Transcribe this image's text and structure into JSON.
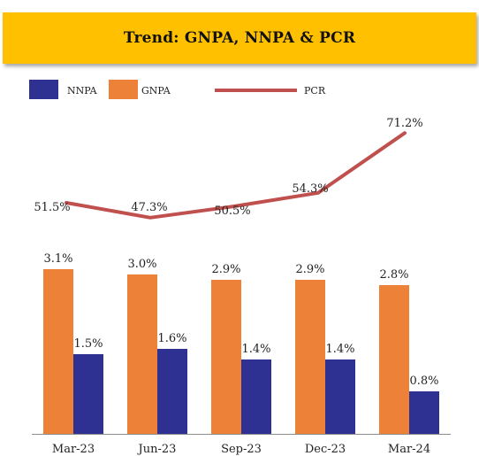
{
  "chart_data": {
    "type": "bar",
    "title": "Trend: GNPA, NNPA & PCR",
    "categories": [
      "Mar-23",
      "Jun-23",
      "Sep-23",
      "Dec-23",
      "Mar-24"
    ],
    "series": [
      {
        "name": "GNPA",
        "kind": "bar",
        "color": "#ed8137",
        "values": [
          3.1,
          3.0,
          2.9,
          2.9,
          2.8
        ],
        "labels": [
          "3.1%",
          "3.0%",
          "2.9%",
          "2.9%",
          "2.8%"
        ]
      },
      {
        "name": "NNPA",
        "kind": "bar",
        "color": "#2e3192",
        "values": [
          1.5,
          1.6,
          1.4,
          1.4,
          0.8
        ],
        "labels": [
          "1.5%",
          "1.6%",
          "1.4%",
          "1.4%",
          "0.8%"
        ]
      },
      {
        "name": "PCR",
        "kind": "line",
        "color": "#c0504d",
        "values": [
          51.5,
          47.3,
          50.5,
          54.3,
          71.2
        ],
        "labels": [
          "51.5%",
          "47.3%",
          "50.5%",
          "54.3%",
          "71.2%"
        ]
      }
    ],
    "legend": {
      "position": "top-left",
      "order": [
        "NNPA",
        "GNPA",
        "PCR"
      ]
    },
    "grid": false
  }
}
